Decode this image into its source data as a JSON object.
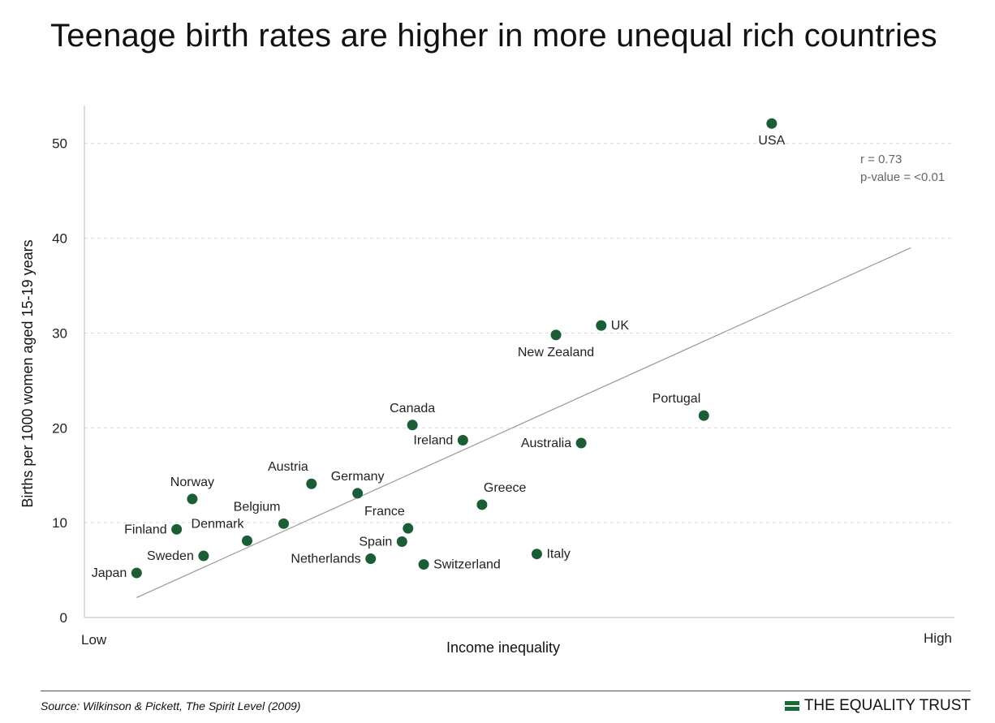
{
  "title": "Teenage birth rates are higher in more unequal rich countries",
  "stats": {
    "r": "r = 0.73",
    "p": "p-value = <0.01"
  },
  "source": "Source: Wilkinson & Pickett, The Spirit Level (2009)",
  "brand": "THE EQUALITY TRUST",
  "colors": {
    "point": "#1b5e35",
    "trend": "#999999",
    "grid": "#d9d9d9",
    "brand": "#1b6b3a"
  },
  "chart_data": {
    "type": "scatter",
    "xlabel": "Income inequality",
    "ylabel": "Births per 1000 women aged 15-19 years",
    "x_tick_labels": [
      "Low",
      "High"
    ],
    "xlim": [
      0,
      100
    ],
    "ylim": [
      0,
      54
    ],
    "yticks": [
      0,
      10,
      20,
      30,
      40,
      50
    ],
    "grid": "horizontal dashed",
    "points": [
      {
        "label": "Japan",
        "x": 6,
        "y": 4.7,
        "label_pos": "left"
      },
      {
        "label": "Finland",
        "x": 10.6,
        "y": 9.3,
        "label_pos": "left"
      },
      {
        "label": "Norway",
        "x": 12.4,
        "y": 12.5,
        "label_pos": "above"
      },
      {
        "label": "Sweden",
        "x": 13.7,
        "y": 6.5,
        "label_pos": "left"
      },
      {
        "label": "Denmark",
        "x": 18.7,
        "y": 8.1,
        "label_pos": "above-left"
      },
      {
        "label": "Belgium",
        "x": 22.9,
        "y": 9.9,
        "label_pos": "above-left"
      },
      {
        "label": "Austria",
        "x": 26.1,
        "y": 14.1,
        "label_pos": "above-left"
      },
      {
        "label": "Germany",
        "x": 31.4,
        "y": 13.1,
        "label_pos": "above"
      },
      {
        "label": "Netherlands",
        "x": 32.9,
        "y": 6.2,
        "label_pos": "left"
      },
      {
        "label": "Spain",
        "x": 36.5,
        "y": 8.0,
        "label_pos": "left"
      },
      {
        "label": "France",
        "x": 37.2,
        "y": 9.4,
        "label_pos": "above-left"
      },
      {
        "label": "Canada",
        "x": 37.7,
        "y": 20.3,
        "label_pos": "above"
      },
      {
        "label": "Switzerland",
        "x": 39.0,
        "y": 5.6,
        "label_pos": "right"
      },
      {
        "label": "Ireland",
        "x": 43.5,
        "y": 18.7,
        "label_pos": "left"
      },
      {
        "label": "Greece",
        "x": 45.7,
        "y": 11.9,
        "label_pos": "above-right"
      },
      {
        "label": "Italy",
        "x": 52.0,
        "y": 6.7,
        "label_pos": "right"
      },
      {
        "label": "New Zealand",
        "x": 54.2,
        "y": 29.8,
        "label_pos": "below"
      },
      {
        "label": "Australia",
        "x": 57.1,
        "y": 18.4,
        "label_pos": "left"
      },
      {
        "label": "UK",
        "x": 59.4,
        "y": 30.8,
        "label_pos": "right"
      },
      {
        "label": "Portugal",
        "x": 71.2,
        "y": 21.3,
        "label_pos": "above-left"
      },
      {
        "label": "USA",
        "x": 79.0,
        "y": 52.1,
        "label_pos": "below"
      }
    ],
    "trend_line": {
      "x": [
        6,
        95
      ],
      "y": [
        2.1,
        39.0
      ]
    }
  }
}
